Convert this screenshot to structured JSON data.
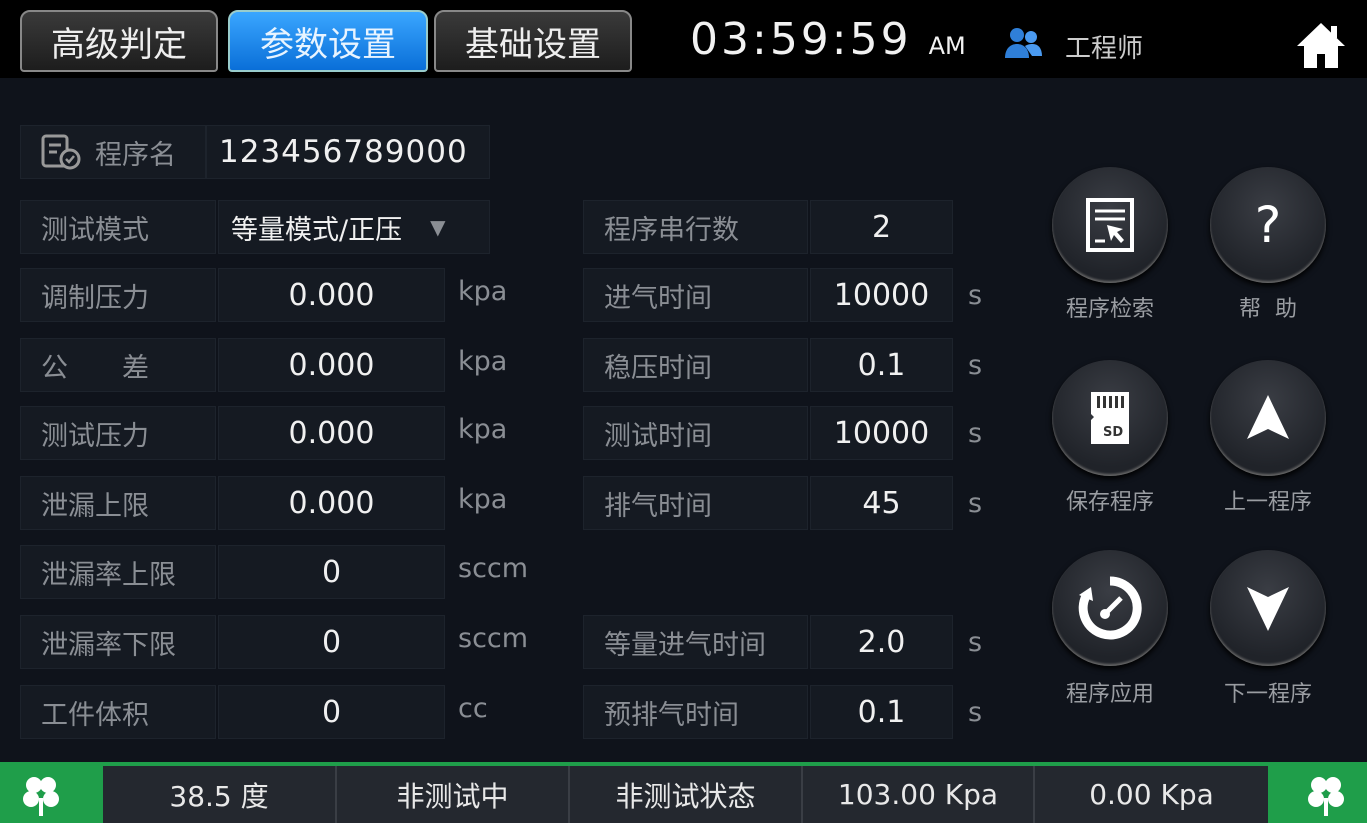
{
  "tabs": [
    {
      "label": "高级判定",
      "active": false
    },
    {
      "label": "参数设置",
      "active": true
    },
    {
      "label": "基础设置",
      "active": false
    }
  ],
  "clock": {
    "time": "03:59:59",
    "ampm": "AM"
  },
  "user": {
    "icon": "users-icon",
    "role": "工程师"
  },
  "program": {
    "label": "程序名",
    "value": "123456789000"
  },
  "mode": {
    "label": "测试模式",
    "value": "等量模式/正压"
  },
  "left_params": [
    {
      "label": "调制压力",
      "value": "0.000",
      "unit": "kpa"
    },
    {
      "label": "公　　差",
      "value": "0.000",
      "unit": "kpa"
    },
    {
      "label": "测试压力",
      "value": "0.000",
      "unit": "kpa"
    },
    {
      "label": "泄漏上限",
      "value": "0.000",
      "unit": "kpa"
    },
    {
      "label": "泄漏率上限",
      "value": "0",
      "unit": "sccm"
    },
    {
      "label": "泄漏率下限",
      "value": "0",
      "unit": "sccm"
    },
    {
      "label": "工件体积",
      "value": "0",
      "unit": "cc"
    }
  ],
  "right_params": [
    {
      "label": "程序串行数",
      "value": "2",
      "unit": ""
    },
    {
      "label": "进气时间",
      "value": "10000",
      "unit": "s"
    },
    {
      "label": "稳压时间",
      "value": "0.1",
      "unit": "s"
    },
    {
      "label": "测试时间",
      "value": "10000",
      "unit": "s"
    },
    {
      "label": "排气时间",
      "value": "45",
      "unit": "s"
    },
    {
      "label": "等量进气时间",
      "value": "2.0",
      "unit": "s"
    },
    {
      "label": "预排气时间",
      "value": "0.1",
      "unit": "s"
    }
  ],
  "buttons": [
    {
      "label": "程序检索",
      "icon": "program-search-icon"
    },
    {
      "label": "帮  助",
      "icon": "question-icon"
    },
    {
      "label": "保存程序",
      "icon": "sd-card-icon"
    },
    {
      "label": "上一程序",
      "icon": "arrow-up-icon"
    },
    {
      "label": "程序应用",
      "icon": "gauge-gear-icon"
    },
    {
      "label": "下一程序",
      "icon": "arrow-down-icon"
    }
  ],
  "status": [
    "38.5 度",
    "非测试中",
    "非测试状态",
    "103.00 Kpa",
    "0.00 Kpa"
  ],
  "colors": {
    "active_tab": "#1e8cf0",
    "status_bar": "#1f9e4a",
    "background": "#0f131b"
  }
}
